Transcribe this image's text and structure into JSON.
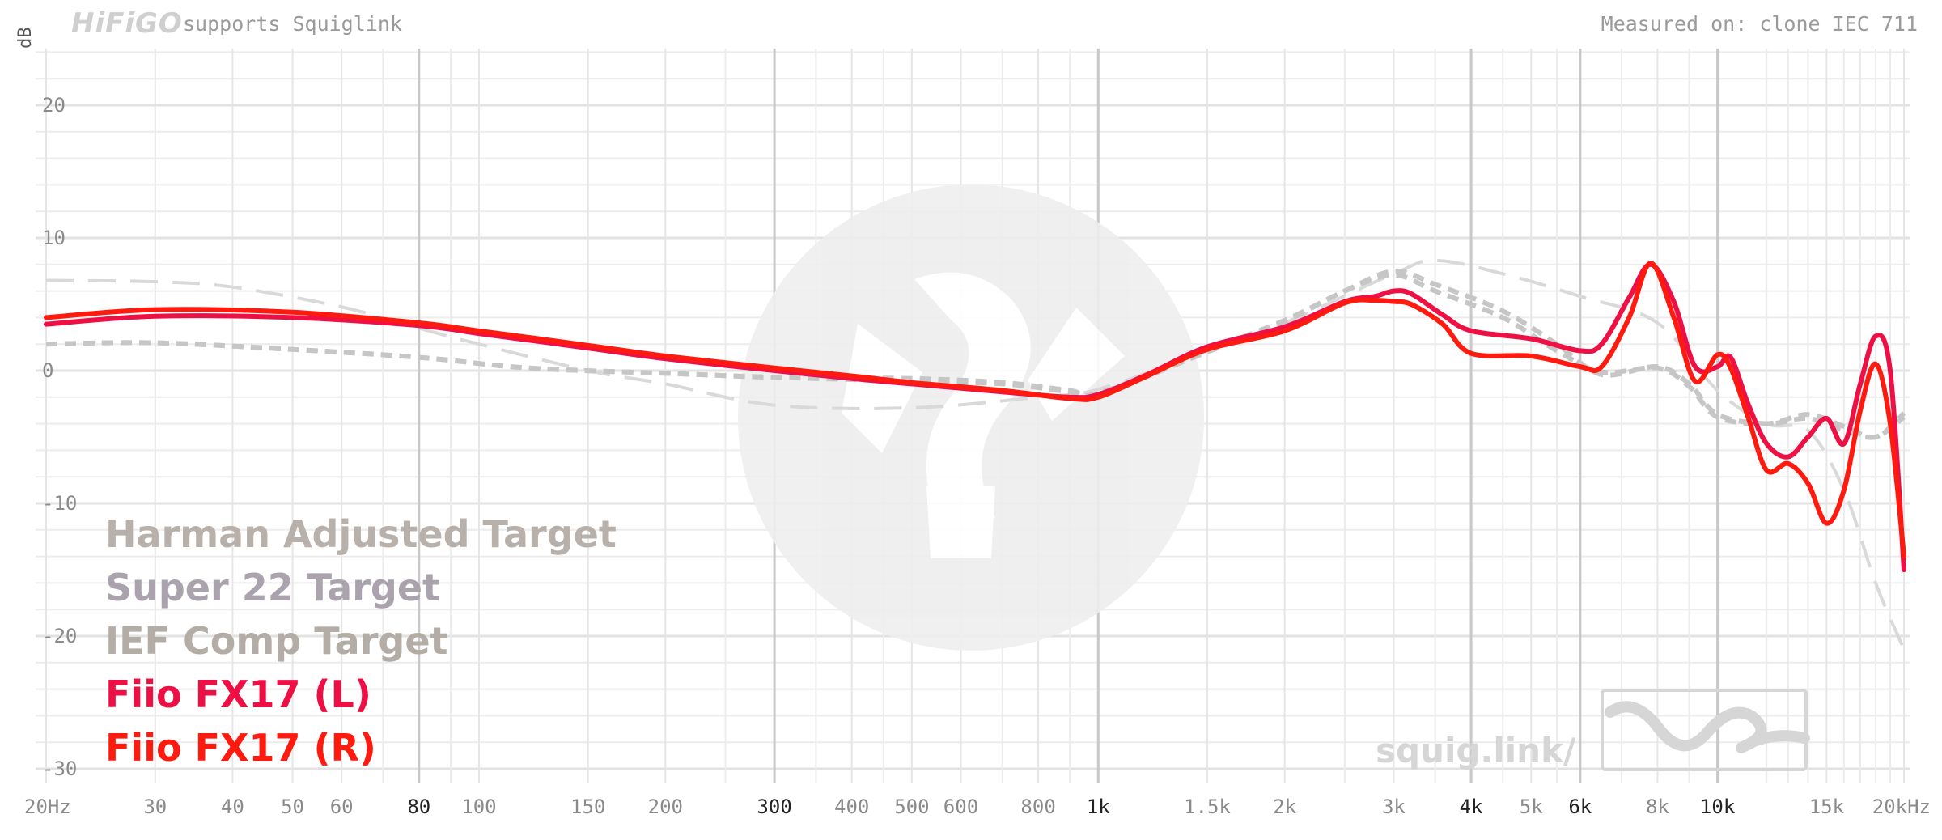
{
  "header": {
    "brand_logo": "HiFiGO",
    "supports_text": "supports Squiglink",
    "measured_on": "Measured on: clone IEC 711"
  },
  "watermark": {
    "text": "squig.link/"
  },
  "colors": {
    "harman": "#b8b0aa",
    "super22": "#aaa3ad",
    "ief": "#b3ada6",
    "fx17_l": "#ee0f45",
    "fx17_r": "#ff1a0f",
    "grid_major": "#c8c8c8",
    "grid_minor": "#ececec",
    "tick_text": "#8a8a8a"
  },
  "chart_data": {
    "type": "line",
    "title": "",
    "xlabel": "",
    "ylabel": "dB",
    "x_scale": "log",
    "xlim": [
      20,
      20000
    ],
    "ylim": [
      -32,
      25
    ],
    "grid": true,
    "legend_position": "bottom-left",
    "x_ticks": [
      {
        "value": 20,
        "label": "20Hz",
        "major": false
      },
      {
        "value": 30,
        "label": "30",
        "major": false
      },
      {
        "value": 40,
        "label": "40",
        "major": false
      },
      {
        "value": 50,
        "label": "50",
        "major": false
      },
      {
        "value": 60,
        "label": "60",
        "major": false
      },
      {
        "value": 80,
        "label": "80",
        "major": true
      },
      {
        "value": 100,
        "label": "100",
        "major": false
      },
      {
        "value": 150,
        "label": "150",
        "major": false
      },
      {
        "value": 200,
        "label": "200",
        "major": false
      },
      {
        "value": 300,
        "label": "300",
        "major": true
      },
      {
        "value": 400,
        "label": "400",
        "major": false
      },
      {
        "value": 500,
        "label": "500",
        "major": false
      },
      {
        "value": 600,
        "label": "600",
        "major": false
      },
      {
        "value": 800,
        "label": "800",
        "major": false
      },
      {
        "value": 1000,
        "label": "1k",
        "major": true
      },
      {
        "value": 1500,
        "label": "1.5k",
        "major": false
      },
      {
        "value": 2000,
        "label": "2k",
        "major": false
      },
      {
        "value": 3000,
        "label": "3k",
        "major": false
      },
      {
        "value": 4000,
        "label": "4k",
        "major": true
      },
      {
        "value": 5000,
        "label": "5k",
        "major": false
      },
      {
        "value": 6000,
        "label": "6k",
        "major": true
      },
      {
        "value": 8000,
        "label": "8k",
        "major": false
      },
      {
        "value": 10000,
        "label": "10k",
        "major": true
      },
      {
        "value": 15000,
        "label": "15k",
        "major": false
      },
      {
        "value": 20000,
        "label": "20kHz",
        "major": false
      }
    ],
    "y_ticks": [
      {
        "value": 20,
        "label": "20"
      },
      {
        "value": 10,
        "label": "10"
      },
      {
        "value": 0,
        "label": "0"
      },
      {
        "value": -10,
        "label": "-10"
      },
      {
        "value": -20,
        "label": "-20"
      },
      {
        "value": -30,
        "label": "-30"
      }
    ],
    "series": [
      {
        "name": "Harman Adjusted Target",
        "style": "long-dash",
        "points": [
          [
            20,
            6.8
          ],
          [
            30,
            6.7
          ],
          [
            40,
            6.3
          ],
          [
            60,
            4.8
          ],
          [
            80,
            3.2
          ],
          [
            100,
            2.0
          ],
          [
            150,
            0.0
          ],
          [
            200,
            -1.0
          ],
          [
            300,
            -2.6
          ],
          [
            500,
            -2.8
          ],
          [
            800,
            -2.0
          ],
          [
            1000,
            -1.4
          ],
          [
            1500,
            1.5
          ],
          [
            2000,
            3.6
          ],
          [
            3000,
            7.3
          ],
          [
            3500,
            8.3
          ],
          [
            4500,
            7.3
          ],
          [
            6000,
            5.6
          ],
          [
            8000,
            3.6
          ],
          [
            10000,
            -1.5
          ],
          [
            12000,
            -4.0
          ],
          [
            14000,
            -4.5
          ],
          [
            16000,
            -9.0
          ],
          [
            18000,
            -16.0
          ],
          [
            20000,
            -21.0
          ]
        ]
      },
      {
        "name": "Super 22 Target",
        "style": "dash",
        "points": [
          [
            20,
            2.0
          ],
          [
            30,
            2.1
          ],
          [
            50,
            1.6
          ],
          [
            80,
            1.0
          ],
          [
            120,
            0.2
          ],
          [
            200,
            -0.2
          ],
          [
            300,
            -0.5
          ],
          [
            500,
            -0.6
          ],
          [
            700,
            -0.9
          ],
          [
            900,
            -1.5
          ],
          [
            1000,
            -1.7
          ],
          [
            1500,
            1.5
          ],
          [
            2000,
            3.8
          ],
          [
            2500,
            6.0
          ],
          [
            3000,
            7.5
          ],
          [
            3500,
            6.5
          ],
          [
            4500,
            4.5
          ],
          [
            5500,
            2.0
          ],
          [
            6500,
            -0.3
          ],
          [
            8000,
            0.3
          ],
          [
            9000,
            -1.0
          ],
          [
            10000,
            -3.3
          ],
          [
            12000,
            -4.0
          ],
          [
            14000,
            -3.6
          ],
          [
            16000,
            -4.5
          ],
          [
            18000,
            -5.0
          ],
          [
            20000,
            -3.5
          ]
        ]
      },
      {
        "name": "IEF Comp Target",
        "style": "dash",
        "points": [
          [
            20,
            2.0
          ],
          [
            30,
            2.1
          ],
          [
            50,
            1.6
          ],
          [
            80,
            1.0
          ],
          [
            120,
            0.2
          ],
          [
            200,
            -0.2
          ],
          [
            300,
            -0.5
          ],
          [
            500,
            -0.8
          ],
          [
            700,
            -1.0
          ],
          [
            900,
            -1.6
          ],
          [
            1000,
            -1.8
          ],
          [
            1500,
            1.4
          ],
          [
            2000,
            3.7
          ],
          [
            2500,
            6.0
          ],
          [
            3000,
            7.2
          ],
          [
            3500,
            6.0
          ],
          [
            4500,
            4.0
          ],
          [
            5500,
            1.5
          ],
          [
            6500,
            -0.1
          ],
          [
            8000,
            0.2
          ],
          [
            9000,
            -1.2
          ],
          [
            10000,
            -3.5
          ],
          [
            12000,
            -4.0
          ],
          [
            14000,
            -3.3
          ],
          [
            16000,
            -4.2
          ],
          [
            18000,
            -5.0
          ],
          [
            20000,
            -3.2
          ]
        ]
      },
      {
        "name": "Fiio FX17 (L)",
        "style": "solid",
        "points": [
          [
            20,
            3.5
          ],
          [
            30,
            4.1
          ],
          [
            50,
            4.0
          ],
          [
            80,
            3.4
          ],
          [
            100,
            2.8
          ],
          [
            150,
            1.7
          ],
          [
            200,
            0.9
          ],
          [
            300,
            0.0
          ],
          [
            400,
            -0.6
          ],
          [
            500,
            -1.0
          ],
          [
            700,
            -1.6
          ],
          [
            900,
            -2.0
          ],
          [
            1000,
            -1.8
          ],
          [
            1200,
            -0.3
          ],
          [
            1500,
            1.8
          ],
          [
            2000,
            3.3
          ],
          [
            2500,
            5.2
          ],
          [
            2800,
            5.6
          ],
          [
            3000,
            6.0
          ],
          [
            3200,
            5.8
          ],
          [
            3600,
            4.2
          ],
          [
            4000,
            3.0
          ],
          [
            5000,
            2.4
          ],
          [
            6000,
            1.5
          ],
          [
            6500,
            2.0
          ],
          [
            7200,
            5.5
          ],
          [
            7800,
            8.0
          ],
          [
            8500,
            5.2
          ],
          [
            9200,
            0.3
          ],
          [
            10000,
            0.3
          ],
          [
            10500,
            1.0
          ],
          [
            11200,
            -2.5
          ],
          [
            12000,
            -5.5
          ],
          [
            13000,
            -6.5
          ],
          [
            14000,
            -5.0
          ],
          [
            15000,
            -3.6
          ],
          [
            16000,
            -5.5
          ],
          [
            17000,
            -1.0
          ],
          [
            18000,
            2.6
          ],
          [
            19000,
            0.0
          ],
          [
            20000,
            -15.0
          ]
        ]
      },
      {
        "name": "Fiio FX17 (R)",
        "style": "solid",
        "points": [
          [
            20,
            4.0
          ],
          [
            30,
            4.6
          ],
          [
            50,
            4.4
          ],
          [
            80,
            3.6
          ],
          [
            100,
            3.0
          ],
          [
            150,
            1.9
          ],
          [
            200,
            1.1
          ],
          [
            300,
            0.2
          ],
          [
            400,
            -0.4
          ],
          [
            500,
            -0.9
          ],
          [
            700,
            -1.5
          ],
          [
            900,
            -2.1
          ],
          [
            1000,
            -2.0
          ],
          [
            1200,
            -0.4
          ],
          [
            1500,
            1.6
          ],
          [
            2000,
            3.0
          ],
          [
            2500,
            5.1
          ],
          [
            2800,
            5.3
          ],
          [
            3000,
            5.2
          ],
          [
            3200,
            5.0
          ],
          [
            3600,
            3.5
          ],
          [
            4000,
            1.3
          ],
          [
            5000,
            1.1
          ],
          [
            6000,
            0.3
          ],
          [
            6500,
            0.3
          ],
          [
            7200,
            4.0
          ],
          [
            7800,
            8.1
          ],
          [
            8500,
            4.0
          ],
          [
            9200,
            -0.8
          ],
          [
            10000,
            1.2
          ],
          [
            10500,
            0.2
          ],
          [
            11200,
            -3.5
          ],
          [
            12000,
            -7.5
          ],
          [
            13000,
            -7.0
          ],
          [
            14000,
            -8.5
          ],
          [
            15000,
            -11.5
          ],
          [
            16000,
            -9.0
          ],
          [
            17000,
            -3.0
          ],
          [
            18000,
            0.5
          ],
          [
            19000,
            -4.0
          ],
          [
            20000,
            -14.0
          ]
        ]
      }
    ]
  }
}
